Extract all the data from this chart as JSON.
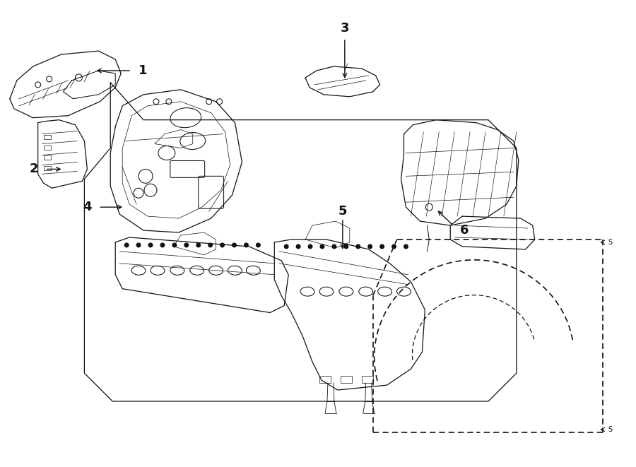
{
  "bg_color": "#ffffff",
  "line_color": "#111111",
  "fig_width": 9.0,
  "fig_height": 6.61,
  "dpi": 100,
  "hex_box": {
    "points": [
      [
        1.55,
        5.45
      ],
      [
        1.55,
        4.52
      ],
      [
        1.18,
        4.08
      ],
      [
        1.18,
        1.32
      ],
      [
        1.58,
        0.92
      ],
      [
        6.92,
        0.92
      ],
      [
        7.32,
        1.32
      ],
      [
        7.32,
        4.52
      ],
      [
        6.92,
        4.92
      ],
      [
        2.02,
        4.92
      ]
    ]
  }
}
